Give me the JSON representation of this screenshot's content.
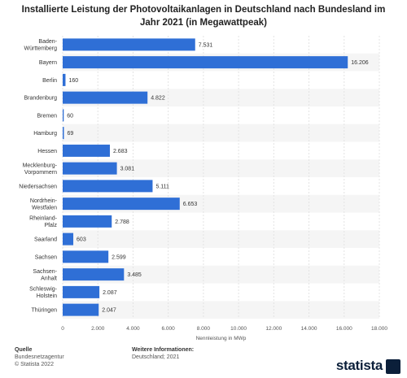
{
  "header": {
    "title": "Installierte Leistung der Photovoltaikanlagen in Deutschland nach Bundesland im Jahr 2021 (in Megawattpeak)"
  },
  "chart_data": {
    "type": "bar",
    "orientation": "horizontal",
    "categories": [
      [
        "Baden-",
        "Württemberg"
      ],
      [
        "Bayern"
      ],
      [
        "Berlin"
      ],
      [
        "Brandenburg"
      ],
      [
        "Bremen"
      ],
      [
        "Hamburg"
      ],
      [
        "Hessen"
      ],
      [
        "Mecklenburg-",
        "Vorpommern"
      ],
      [
        "Niedersachsen"
      ],
      [
        "Nordrhein-",
        "Westfalen"
      ],
      [
        "Rheinland-",
        "Pfalz"
      ],
      [
        "Saarland"
      ],
      [
        "Sachsen"
      ],
      [
        "Sachsen-",
        "Anhalt"
      ],
      [
        "Schleswig-",
        "Holstein"
      ],
      [
        "Thüringen"
      ]
    ],
    "values": [
      7531,
      16206,
      160,
      4822,
      60,
      69,
      2683,
      3081,
      5111,
      6653,
      2788,
      603,
      2599,
      3485,
      2087,
      2047
    ],
    "value_labels": [
      "7.531",
      "16.206",
      "160",
      "4.822",
      "60",
      "69",
      "2.683",
      "3.081",
      "5.111",
      "6.653",
      "2.788",
      "603",
      "2.599",
      "3.485",
      "2.087",
      "2.047"
    ],
    "xlabel": "Nennleistung in MWp",
    "xlim": [
      0,
      18000
    ],
    "xticks": [
      0,
      2000,
      4000,
      6000,
      8000,
      10000,
      12000,
      14000,
      16000,
      18000
    ],
    "xtick_labels": [
      "0",
      "2.000",
      "4.000",
      "6.000",
      "8.000",
      "10.000",
      "12.000",
      "14.000",
      "16.000",
      "18.000"
    ],
    "grid": true,
    "bar_color": "#2f6fd6"
  },
  "footer": {
    "source_head": "Quelle",
    "source_lines": [
      "Bundesnetzagentur",
      "© Statista 2022"
    ],
    "info_head": "Weitere Informationen:",
    "info_lines": [
      "Deutschland; 2021"
    ],
    "logo": "statista"
  }
}
